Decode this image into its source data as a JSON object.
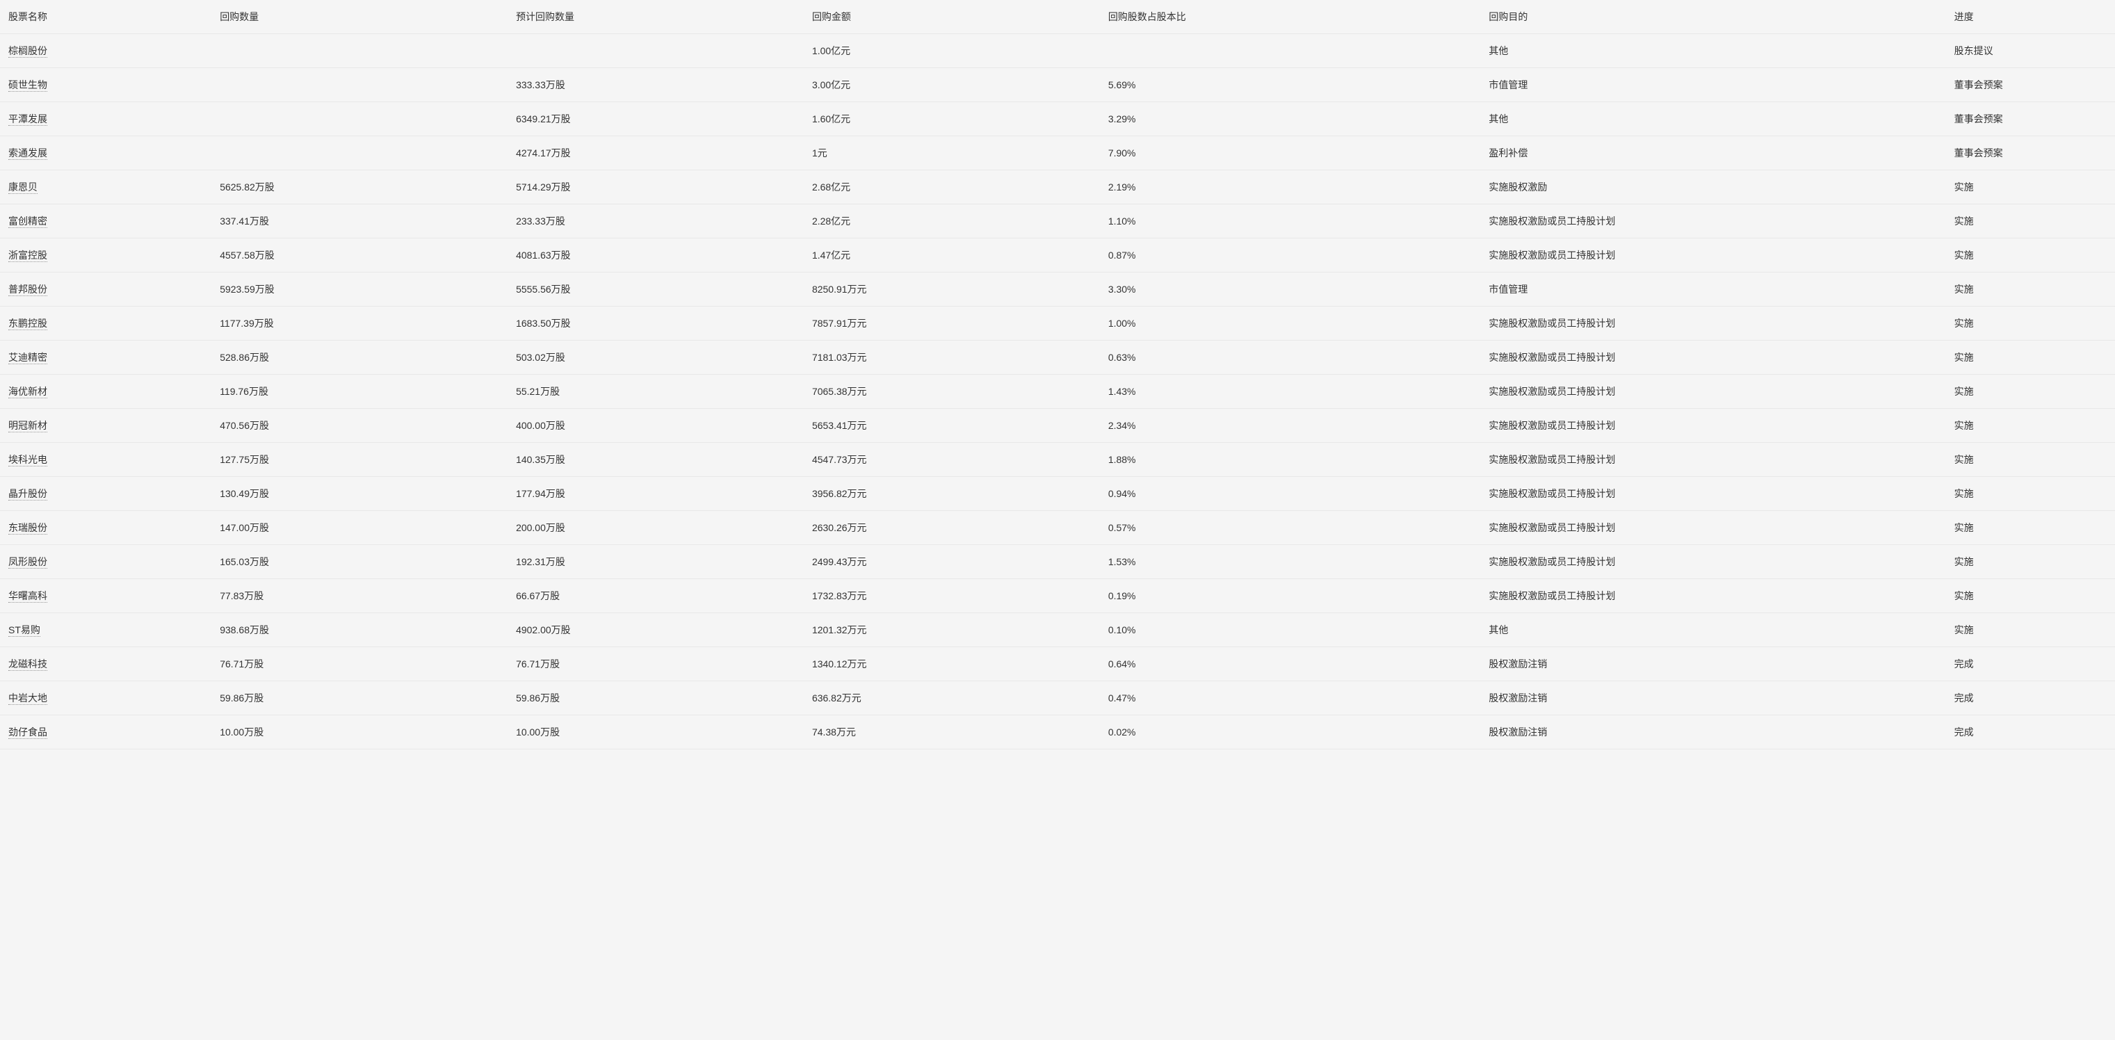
{
  "table": {
    "columns": [
      {
        "key": "name",
        "label": "股票名称",
        "class": "col-name"
      },
      {
        "key": "qty",
        "label": "回购数量",
        "class": "col-qty"
      },
      {
        "key": "est_qty",
        "label": "预计回购数量",
        "class": "col-est-qty"
      },
      {
        "key": "amount",
        "label": "回购金额",
        "class": "col-amount"
      },
      {
        "key": "ratio",
        "label": "回购股数占股本比",
        "class": "col-ratio"
      },
      {
        "key": "purpose",
        "label": "回购目的",
        "class": "col-purpose"
      },
      {
        "key": "progress",
        "label": "进度",
        "class": "col-progress"
      }
    ],
    "rows": [
      {
        "name": "棕榈股份",
        "qty": "",
        "est_qty": "",
        "amount": "1.00亿元",
        "ratio": "",
        "purpose": "其他",
        "progress": "股东提议"
      },
      {
        "name": "硕世生物",
        "qty": "",
        "est_qty": "333.33万股",
        "amount": "3.00亿元",
        "ratio": "5.69%",
        "purpose": "市值管理",
        "progress": "董事会预案"
      },
      {
        "name": "平潭发展",
        "qty": "",
        "est_qty": "6349.21万股",
        "amount": "1.60亿元",
        "ratio": "3.29%",
        "purpose": "其他",
        "progress": "董事会预案"
      },
      {
        "name": "索通发展",
        "qty": "",
        "est_qty": "4274.17万股",
        "amount": "1元",
        "ratio": "7.90%",
        "purpose": "盈利补偿",
        "progress": "董事会预案"
      },
      {
        "name": "康恩贝",
        "qty": "5625.82万股",
        "est_qty": "5714.29万股",
        "amount": "2.68亿元",
        "ratio": "2.19%",
        "purpose": "实施股权激励",
        "progress": "实施"
      },
      {
        "name": "富创精密",
        "qty": "337.41万股",
        "est_qty": "233.33万股",
        "amount": "2.28亿元",
        "ratio": "1.10%",
        "purpose": "实施股权激励或员工持股计划",
        "progress": "实施"
      },
      {
        "name": "浙富控股",
        "qty": "4557.58万股",
        "est_qty": "4081.63万股",
        "amount": "1.47亿元",
        "ratio": "0.87%",
        "purpose": "实施股权激励或员工持股计划",
        "progress": "实施"
      },
      {
        "name": "普邦股份",
        "qty": "5923.59万股",
        "est_qty": "5555.56万股",
        "amount": "8250.91万元",
        "ratio": "3.30%",
        "purpose": "市值管理",
        "progress": "实施"
      },
      {
        "name": "东鹏控股",
        "qty": "1177.39万股",
        "est_qty": "1683.50万股",
        "amount": "7857.91万元",
        "ratio": "1.00%",
        "purpose": "实施股权激励或员工持股计划",
        "progress": "实施"
      },
      {
        "name": "艾迪精密",
        "qty": "528.86万股",
        "est_qty": "503.02万股",
        "amount": "7181.03万元",
        "ratio": "0.63%",
        "purpose": "实施股权激励或员工持股计划",
        "progress": "实施"
      },
      {
        "name": "海优新材",
        "qty": "119.76万股",
        "est_qty": "55.21万股",
        "amount": "7065.38万元",
        "ratio": "1.43%",
        "purpose": "实施股权激励或员工持股计划",
        "progress": "实施"
      },
      {
        "name": "明冠新材",
        "qty": "470.56万股",
        "est_qty": "400.00万股",
        "amount": "5653.41万元",
        "ratio": "2.34%",
        "purpose": "实施股权激励或员工持股计划",
        "progress": "实施"
      },
      {
        "name": "埃科光电",
        "qty": "127.75万股",
        "est_qty": "140.35万股",
        "amount": "4547.73万元",
        "ratio": "1.88%",
        "purpose": "实施股权激励或员工持股计划",
        "progress": "实施"
      },
      {
        "name": "晶升股份",
        "qty": "130.49万股",
        "est_qty": "177.94万股",
        "amount": "3956.82万元",
        "ratio": "0.94%",
        "purpose": "实施股权激励或员工持股计划",
        "progress": "实施"
      },
      {
        "name": "东瑞股份",
        "qty": "147.00万股",
        "est_qty": "200.00万股",
        "amount": "2630.26万元",
        "ratio": "0.57%",
        "purpose": "实施股权激励或员工持股计划",
        "progress": "实施"
      },
      {
        "name": "凤形股份",
        "qty": "165.03万股",
        "est_qty": "192.31万股",
        "amount": "2499.43万元",
        "ratio": "1.53%",
        "purpose": "实施股权激励或员工持股计划",
        "progress": "实施"
      },
      {
        "name": "华曙高科",
        "qty": "77.83万股",
        "est_qty": "66.67万股",
        "amount": "1732.83万元",
        "ratio": "0.19%",
        "purpose": "实施股权激励或员工持股计划",
        "progress": "实施"
      },
      {
        "name": "ST易购",
        "qty": "938.68万股",
        "est_qty": "4902.00万股",
        "amount": "1201.32万元",
        "ratio": "0.10%",
        "purpose": "其他",
        "progress": "实施"
      },
      {
        "name": "龙磁科技",
        "qty": "76.71万股",
        "est_qty": "76.71万股",
        "amount": "1340.12万元",
        "ratio": "0.64%",
        "purpose": "股权激励注销",
        "progress": "完成"
      },
      {
        "name": "中岩大地",
        "qty": "59.86万股",
        "est_qty": "59.86万股",
        "amount": "636.82万元",
        "ratio": "0.47%",
        "purpose": "股权激励注销",
        "progress": "完成"
      },
      {
        "name": "劲仔食品",
        "qty": "10.00万股",
        "est_qty": "10.00万股",
        "amount": "74.38万元",
        "ratio": "0.02%",
        "purpose": "股权激励注销",
        "progress": "完成"
      }
    ],
    "styling": {
      "background_color": "#f5f5f5",
      "text_color": "#333333",
      "border_color": "#e8e8e8",
      "link_underline_color": "#999999",
      "font_size": 14,
      "header_font_weight": 400,
      "cell_padding": "14px 12px"
    }
  }
}
